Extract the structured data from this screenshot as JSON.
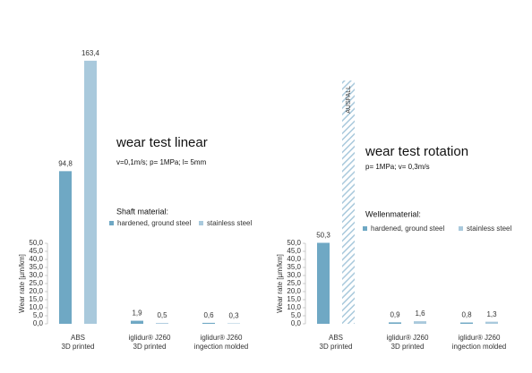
{
  "chart_data": [
    {
      "type": "bar",
      "title": "wear test linear",
      "subtitle": "v=0,1m/s; p= 1MPa; l= 5mm",
      "legend_title": "Shaft material:",
      "y_label": "Wear rate  [µm/km]",
      "categories": [
        [
          "ABS",
          "3D printed"
        ],
        [
          "iglidur® J260",
          "3D printed"
        ],
        [
          "iglidur® J260",
          "ingection molded"
        ]
      ],
      "series": [
        {
          "name": "hardened, ground steel",
          "color": "#6fa8c4",
          "values": [
            94.8,
            1.9,
            0.6
          ],
          "value_labels": [
            "94,8",
            "1,9",
            "0,6"
          ]
        },
        {
          "name": "stainless steel",
          "color": "#a9c9dc",
          "values": [
            163.4,
            0.5,
            0.3
          ],
          "value_labels": [
            "163,4",
            "0,5",
            "0,3"
          ]
        }
      ],
      "ylim": [
        0,
        50
      ],
      "yticks": [
        {
          "value": 0,
          "label": "0,0"
        },
        {
          "value": 5,
          "label": "5,0"
        },
        {
          "value": 10,
          "label": "10,0"
        },
        {
          "value": 15,
          "label": "15,0"
        },
        {
          "value": 20,
          "label": "20,0"
        },
        {
          "value": 25,
          "label": "25,0"
        },
        {
          "value": 30,
          "label": "30,0"
        },
        {
          "value": 35,
          "label": "35,0"
        },
        {
          "value": 40,
          "label": "40,0"
        },
        {
          "value": 45,
          "label": "45,0"
        },
        {
          "value": 50,
          "label": "50,0"
        }
      ]
    },
    {
      "type": "bar",
      "title": "wear test rotation",
      "subtitle": "p= 1MPa; v= 0,3m/s",
      "legend_title": "Wellenmaterial:",
      "y_label": "Wear rate  [µm/km]",
      "failure_label": "AUSFALL",
      "categories": [
        [
          "ABS",
          "3D printed"
        ],
        [
          "iglidur® J260",
          "3D printed"
        ],
        [
          "iglidur® J260",
          "ingection molded"
        ]
      ],
      "series": [
        {
          "name": "hardened, ground steel",
          "color": "#6fa8c4",
          "values": [
            50.3,
            0.9,
            0.8
          ],
          "value_labels": [
            "50,3",
            "0,9",
            "0,8"
          ]
        },
        {
          "name": "stainless steel",
          "color": "#a9c9dc",
          "values": [
            null,
            1.6,
            1.3
          ],
          "value_labels": [
            null,
            "1,6",
            "1,3"
          ]
        }
      ],
      "ylim": [
        0,
        50
      ],
      "yticks": [
        {
          "value": 0,
          "label": "0,0"
        },
        {
          "value": 5,
          "label": "5,0"
        },
        {
          "value": 10,
          "label": "10,0"
        },
        {
          "value": 15,
          "label": "15,0"
        },
        {
          "value": 20,
          "label": "20,0"
        },
        {
          "value": 25,
          "label": "25,0"
        },
        {
          "value": 30,
          "label": "30,0"
        },
        {
          "value": 35,
          "label": "35,0"
        },
        {
          "value": 40,
          "label": "40,0"
        },
        {
          "value": 45,
          "label": "45,0"
        },
        {
          "value": 50,
          "label": "50,0"
        }
      ]
    }
  ]
}
